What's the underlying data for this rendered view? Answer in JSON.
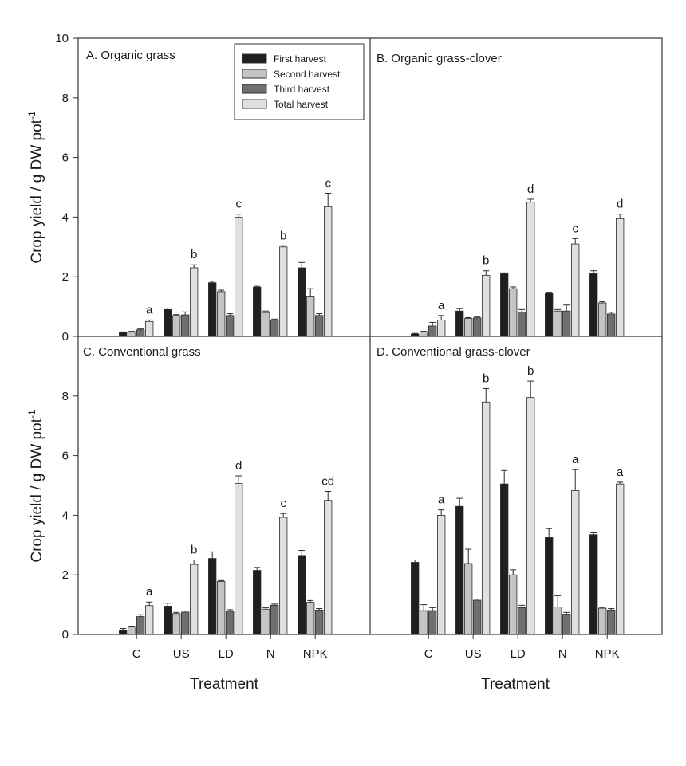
{
  "chart_data": {
    "type": "bar",
    "xlabel": "Treatment",
    "ylabel": "Crop yield / g DW pot",
    "ylabel_sup": "-1",
    "ylim": [
      0,
      10
    ],
    "yticks": [
      0,
      2,
      4,
      6,
      8,
      10
    ],
    "categories": [
      "C",
      "US",
      "LD",
      "N",
      "NPK"
    ],
    "legend": {
      "position": "top-center",
      "entries": [
        {
          "name": "First harvest",
          "color": "#1f1f1f"
        },
        {
          "name": "Second harvest",
          "color": "#c4c4c4"
        },
        {
          "name": "Third harvest",
          "color": "#6f6f6f"
        },
        {
          "name": "Total harvest",
          "color": "#e0e0e0"
        }
      ]
    },
    "series_names": [
      "First harvest",
      "Second harvest",
      "Third harvest",
      "Total harvest"
    ],
    "colors": [
      "#1f1f1f",
      "#c4c4c4",
      "#6f6f6f",
      "#e0e0e0"
    ],
    "panels": [
      {
        "title": "A. Organic grass",
        "values": [
          [
            0.13,
            0.9,
            1.8,
            1.65,
            2.3
          ],
          [
            0.15,
            0.7,
            1.5,
            0.8,
            1.35
          ],
          [
            0.22,
            0.72,
            0.7,
            0.55,
            0.7
          ],
          [
            0.5,
            2.3,
            4.0,
            3.0,
            4.35
          ]
        ],
        "errors": [
          [
            0.02,
            0.05,
            0.05,
            0.03,
            0.18
          ],
          [
            0.02,
            0.03,
            0.05,
            0.05,
            0.25
          ],
          [
            0.03,
            0.1,
            0.06,
            0.03,
            0.06
          ],
          [
            0.05,
            0.1,
            0.1,
            0.04,
            0.45
          ]
        ],
        "letters": [
          "a",
          "b",
          "c",
          "b",
          "c"
        ]
      },
      {
        "title": "B. Organic grass-clover",
        "values": [
          [
            0.08,
            0.85,
            2.1,
            1.45,
            2.1
          ],
          [
            0.15,
            0.6,
            1.6,
            0.85,
            1.12
          ],
          [
            0.35,
            0.62,
            0.82,
            0.85,
            0.75
          ],
          [
            0.55,
            2.05,
            4.5,
            3.1,
            3.95
          ]
        ],
        "errors": [
          [
            0.02,
            0.08,
            0.03,
            0.03,
            0.1
          ],
          [
            0.02,
            0.03,
            0.06,
            0.05,
            0.04
          ],
          [
            0.12,
            0.03,
            0.08,
            0.2,
            0.06
          ],
          [
            0.15,
            0.15,
            0.1,
            0.18,
            0.15
          ]
        ],
        "letters": [
          "a",
          "b",
          "d",
          "c",
          "d"
        ]
      },
      {
        "title": "C. Conventional grass",
        "values": [
          [
            0.15,
            0.95,
            2.55,
            2.15,
            2.65
          ],
          [
            0.25,
            0.7,
            1.78,
            0.85,
            1.08
          ],
          [
            0.6,
            0.75,
            0.78,
            0.98,
            0.82
          ],
          [
            0.97,
            2.35,
            5.07,
            3.93,
            4.5
          ]
        ],
        "errors": [
          [
            0.05,
            0.1,
            0.22,
            0.1,
            0.17
          ],
          [
            0.03,
            0.04,
            0.03,
            0.05,
            0.06
          ],
          [
            0.06,
            0.04,
            0.05,
            0.04,
            0.05
          ],
          [
            0.12,
            0.15,
            0.25,
            0.13,
            0.3
          ]
        ],
        "letters": [
          "a",
          "b",
          "d",
          "c",
          "cd"
        ]
      },
      {
        "title": "D. Conventional grass-clover",
        "values": [
          [
            2.42,
            4.3,
            5.05,
            3.25,
            3.35
          ],
          [
            0.8,
            2.38,
            2.0,
            0.92,
            0.88
          ],
          [
            0.8,
            1.15,
            0.9,
            0.68,
            0.82
          ],
          [
            4.0,
            7.8,
            7.95,
            4.83,
            5.05
          ]
        ],
        "errors": [
          [
            0.08,
            0.27,
            0.45,
            0.3,
            0.06
          ],
          [
            0.2,
            0.48,
            0.17,
            0.38,
            0.03
          ],
          [
            0.1,
            0.04,
            0.08,
            0.06,
            0.05
          ],
          [
            0.18,
            0.45,
            0.55,
            0.7,
            0.06
          ]
        ],
        "letters": [
          "a",
          "b",
          "b",
          "a",
          "a"
        ]
      }
    ]
  }
}
